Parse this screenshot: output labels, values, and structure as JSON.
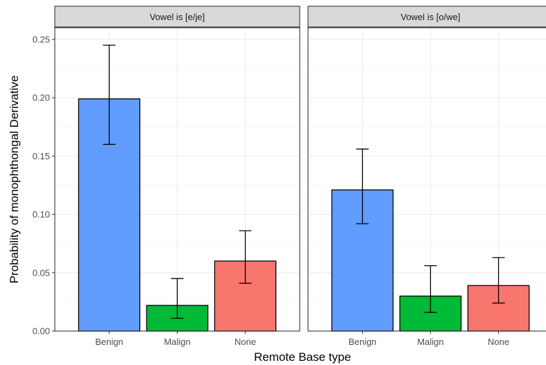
{
  "chart_data": {
    "type": "bar",
    "xlabel": "Remote Base type",
    "ylabel": "Probability of monophthongal Derivative",
    "ylim": [
      0,
      0.26
    ],
    "yticks": [
      0.0,
      0.05,
      0.1,
      0.15,
      0.2,
      0.25
    ],
    "ytick_labels": [
      "0.00",
      "0.05",
      "0.10",
      "0.15",
      "0.20",
      "0.25"
    ],
    "categories": [
      "Benign",
      "Malign",
      "None"
    ],
    "colors": {
      "Benign": "#619CFF",
      "Malign": "#00BA38",
      "None": "#F8766D"
    },
    "grid": true,
    "facets": [
      {
        "label": "Vowel is [e/je]",
        "values": [
          0.199,
          0.022,
          0.06
        ],
        "error_low": [
          0.16,
          0.011,
          0.041
        ],
        "error_high": [
          0.245,
          0.045,
          0.086
        ]
      },
      {
        "label": "Vowel is [o/we]",
        "values": [
          0.121,
          0.03,
          0.039
        ],
        "error_low": [
          0.092,
          0.016,
          0.024
        ],
        "error_high": [
          0.156,
          0.056,
          0.063
        ]
      }
    ]
  }
}
